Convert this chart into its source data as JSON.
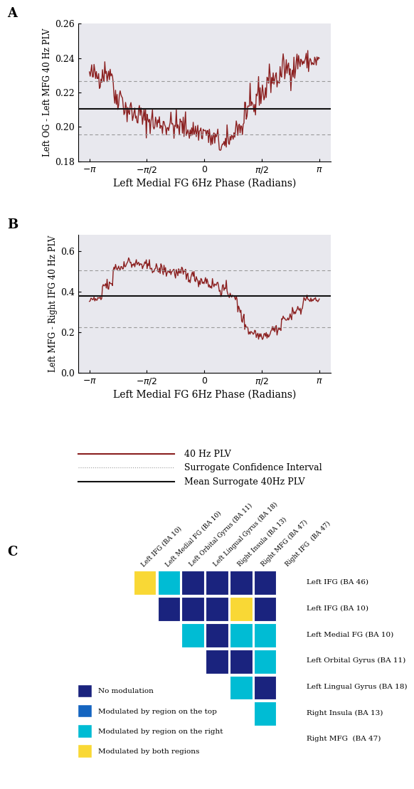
{
  "panel_A": {
    "ylabel": "Left OG - Left MFG 40 Hz PLV",
    "xlabel": "Left Medial FG 6Hz Phase (Radians)",
    "ylim": [
      0.18,
      0.26
    ],
    "yticks": [
      0.18,
      0.2,
      0.22,
      0.24,
      0.26
    ],
    "mean_surrogate": 0.2105,
    "upper_ci": 0.2265,
    "lower_ci": 0.1955
  },
  "panel_B": {
    "ylabel": "Left MFG - Right IFG 40 Hz PLV",
    "xlabel": "Left Medial FG 6Hz Phase (Radians)",
    "ylim": [
      0.0,
      0.68
    ],
    "yticks": [
      0.0,
      0.2,
      0.4,
      0.6
    ],
    "mean_surrogate": 0.378,
    "upper_ci": 0.505,
    "lower_ci": 0.222
  },
  "bg_color": "#e8e8ee",
  "plv_color": "#8b2020",
  "surrogate_color": "#999999",
  "mean_color": "#111111",
  "legend_items": [
    {
      "label": "40 Hz PLV",
      "color": "#8b2020",
      "ls": "-"
    },
    {
      "label": "Surrogate Confidence Interval",
      "color": "#999999",
      "ls": ":"
    },
    {
      "label": "Mean Surrogate 40Hz PLV",
      "color": "#111111",
      "ls": "-"
    }
  ],
  "matrix_row_labels": [
    "Left IFG (BA 46)",
    "Left IFG (BA 10)",
    "Left Medial FG (BA 10)",
    "Left Orbital Gyrus (BA 11)",
    "Left Lingual Gyrus (BA 18)",
    "Right Insula (BA 13)",
    "Right MFG  (BA 47)"
  ],
  "matrix_col_labels": [
    "Left IFG (BA 10)",
    "Left Medial FG (BA 10)",
    "Left Orbital Gyrus (BA 11)",
    "Left Lingual Gyrus (BA 18)",
    "Right Insula (BA 13)",
    "Right MFG (BA 47)",
    "Right IFG  (BA 47)"
  ],
  "matrix_colors": {
    "no_mod": "#1a237e",
    "top": "#1565c0",
    "right": "#00bcd4",
    "both": "#f9d835"
  },
  "matrix_data": [
    [
      3,
      2,
      1,
      1,
      1,
      1,
      -1
    ],
    [
      -1,
      1,
      1,
      1,
      3,
      1,
      -1
    ],
    [
      -1,
      -1,
      2,
      1,
      2,
      2,
      -1
    ],
    [
      -1,
      -1,
      -1,
      1,
      1,
      2,
      -1
    ],
    [
      -1,
      -1,
      -1,
      -1,
      2,
      1,
      -1
    ],
    [
      -1,
      -1,
      -1,
      -1,
      -1,
      2,
      -1
    ],
    [
      -1,
      -1,
      -1,
      -1,
      -1,
      -1,
      -1
    ]
  ],
  "legend_c": [
    {
      "label": "No modulation",
      "color": "#1a237e"
    },
    {
      "label": "Modulated by region on the top",
      "color": "#1565c0"
    },
    {
      "label": "Modulated by region on the right",
      "color": "#00bcd4"
    },
    {
      "label": "Modulated by both regions",
      "color": "#f9d835"
    }
  ]
}
